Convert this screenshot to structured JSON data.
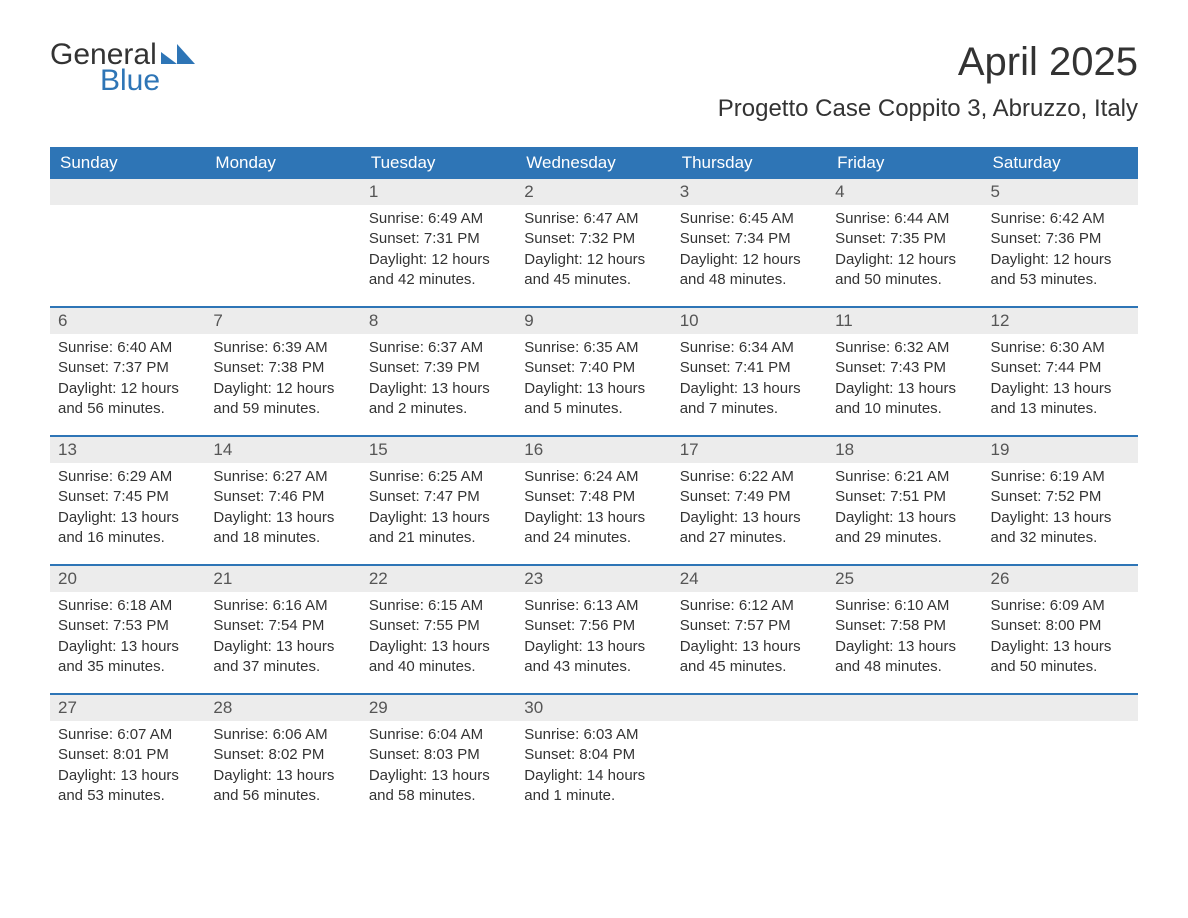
{
  "brand": {
    "word1": "General",
    "word2": "Blue",
    "accent_color": "#2e75b6",
    "text_color": "#333333"
  },
  "title": "April 2025",
  "location": "Progetto Case Coppito 3, Abruzzo, Italy",
  "styling": {
    "header_bg": "#2e75b6",
    "header_text_color": "#ffffff",
    "daynum_bg": "#ececec",
    "row_divider_color": "#2e75b6",
    "body_text_color": "#333333",
    "page_bg": "#ffffff",
    "title_fontsize": 40,
    "location_fontsize": 24,
    "weekday_fontsize": 17,
    "daynum_fontsize": 17,
    "cell_fontsize": 15
  },
  "weekdays": [
    "Sunday",
    "Monday",
    "Tuesday",
    "Wednesday",
    "Thursday",
    "Friday",
    "Saturday"
  ],
  "weeks": [
    [
      null,
      null,
      {
        "n": "1",
        "sunrise": "6:49 AM",
        "sunset": "7:31 PM",
        "daylight": "12 hours and 42 minutes."
      },
      {
        "n": "2",
        "sunrise": "6:47 AM",
        "sunset": "7:32 PM",
        "daylight": "12 hours and 45 minutes."
      },
      {
        "n": "3",
        "sunrise": "6:45 AM",
        "sunset": "7:34 PM",
        "daylight": "12 hours and 48 minutes."
      },
      {
        "n": "4",
        "sunrise": "6:44 AM",
        "sunset": "7:35 PM",
        "daylight": "12 hours and 50 minutes."
      },
      {
        "n": "5",
        "sunrise": "6:42 AM",
        "sunset": "7:36 PM",
        "daylight": "12 hours and 53 minutes."
      }
    ],
    [
      {
        "n": "6",
        "sunrise": "6:40 AM",
        "sunset": "7:37 PM",
        "daylight": "12 hours and 56 minutes."
      },
      {
        "n": "7",
        "sunrise": "6:39 AM",
        "sunset": "7:38 PM",
        "daylight": "12 hours and 59 minutes."
      },
      {
        "n": "8",
        "sunrise": "6:37 AM",
        "sunset": "7:39 PM",
        "daylight": "13 hours and 2 minutes."
      },
      {
        "n": "9",
        "sunrise": "6:35 AM",
        "sunset": "7:40 PM",
        "daylight": "13 hours and 5 minutes."
      },
      {
        "n": "10",
        "sunrise": "6:34 AM",
        "sunset": "7:41 PM",
        "daylight": "13 hours and 7 minutes."
      },
      {
        "n": "11",
        "sunrise": "6:32 AM",
        "sunset": "7:43 PM",
        "daylight": "13 hours and 10 minutes."
      },
      {
        "n": "12",
        "sunrise": "6:30 AM",
        "sunset": "7:44 PM",
        "daylight": "13 hours and 13 minutes."
      }
    ],
    [
      {
        "n": "13",
        "sunrise": "6:29 AM",
        "sunset": "7:45 PM",
        "daylight": "13 hours and 16 minutes."
      },
      {
        "n": "14",
        "sunrise": "6:27 AM",
        "sunset": "7:46 PM",
        "daylight": "13 hours and 18 minutes."
      },
      {
        "n": "15",
        "sunrise": "6:25 AM",
        "sunset": "7:47 PM",
        "daylight": "13 hours and 21 minutes."
      },
      {
        "n": "16",
        "sunrise": "6:24 AM",
        "sunset": "7:48 PM",
        "daylight": "13 hours and 24 minutes."
      },
      {
        "n": "17",
        "sunrise": "6:22 AM",
        "sunset": "7:49 PM",
        "daylight": "13 hours and 27 minutes."
      },
      {
        "n": "18",
        "sunrise": "6:21 AM",
        "sunset": "7:51 PM",
        "daylight": "13 hours and 29 minutes."
      },
      {
        "n": "19",
        "sunrise": "6:19 AM",
        "sunset": "7:52 PM",
        "daylight": "13 hours and 32 minutes."
      }
    ],
    [
      {
        "n": "20",
        "sunrise": "6:18 AM",
        "sunset": "7:53 PM",
        "daylight": "13 hours and 35 minutes."
      },
      {
        "n": "21",
        "sunrise": "6:16 AM",
        "sunset": "7:54 PM",
        "daylight": "13 hours and 37 minutes."
      },
      {
        "n": "22",
        "sunrise": "6:15 AM",
        "sunset": "7:55 PM",
        "daylight": "13 hours and 40 minutes."
      },
      {
        "n": "23",
        "sunrise": "6:13 AM",
        "sunset": "7:56 PM",
        "daylight": "13 hours and 43 minutes."
      },
      {
        "n": "24",
        "sunrise": "6:12 AM",
        "sunset": "7:57 PM",
        "daylight": "13 hours and 45 minutes."
      },
      {
        "n": "25",
        "sunrise": "6:10 AM",
        "sunset": "7:58 PM",
        "daylight": "13 hours and 48 minutes."
      },
      {
        "n": "26",
        "sunrise": "6:09 AM",
        "sunset": "8:00 PM",
        "daylight": "13 hours and 50 minutes."
      }
    ],
    [
      {
        "n": "27",
        "sunrise": "6:07 AM",
        "sunset": "8:01 PM",
        "daylight": "13 hours and 53 minutes."
      },
      {
        "n": "28",
        "sunrise": "6:06 AM",
        "sunset": "8:02 PM",
        "daylight": "13 hours and 56 minutes."
      },
      {
        "n": "29",
        "sunrise": "6:04 AM",
        "sunset": "8:03 PM",
        "daylight": "13 hours and 58 minutes."
      },
      {
        "n": "30",
        "sunrise": "6:03 AM",
        "sunset": "8:04 PM",
        "daylight": "14 hours and 1 minute."
      },
      null,
      null,
      null
    ]
  ],
  "labels": {
    "sunrise": "Sunrise:",
    "sunset": "Sunset:",
    "daylight": "Daylight:"
  }
}
